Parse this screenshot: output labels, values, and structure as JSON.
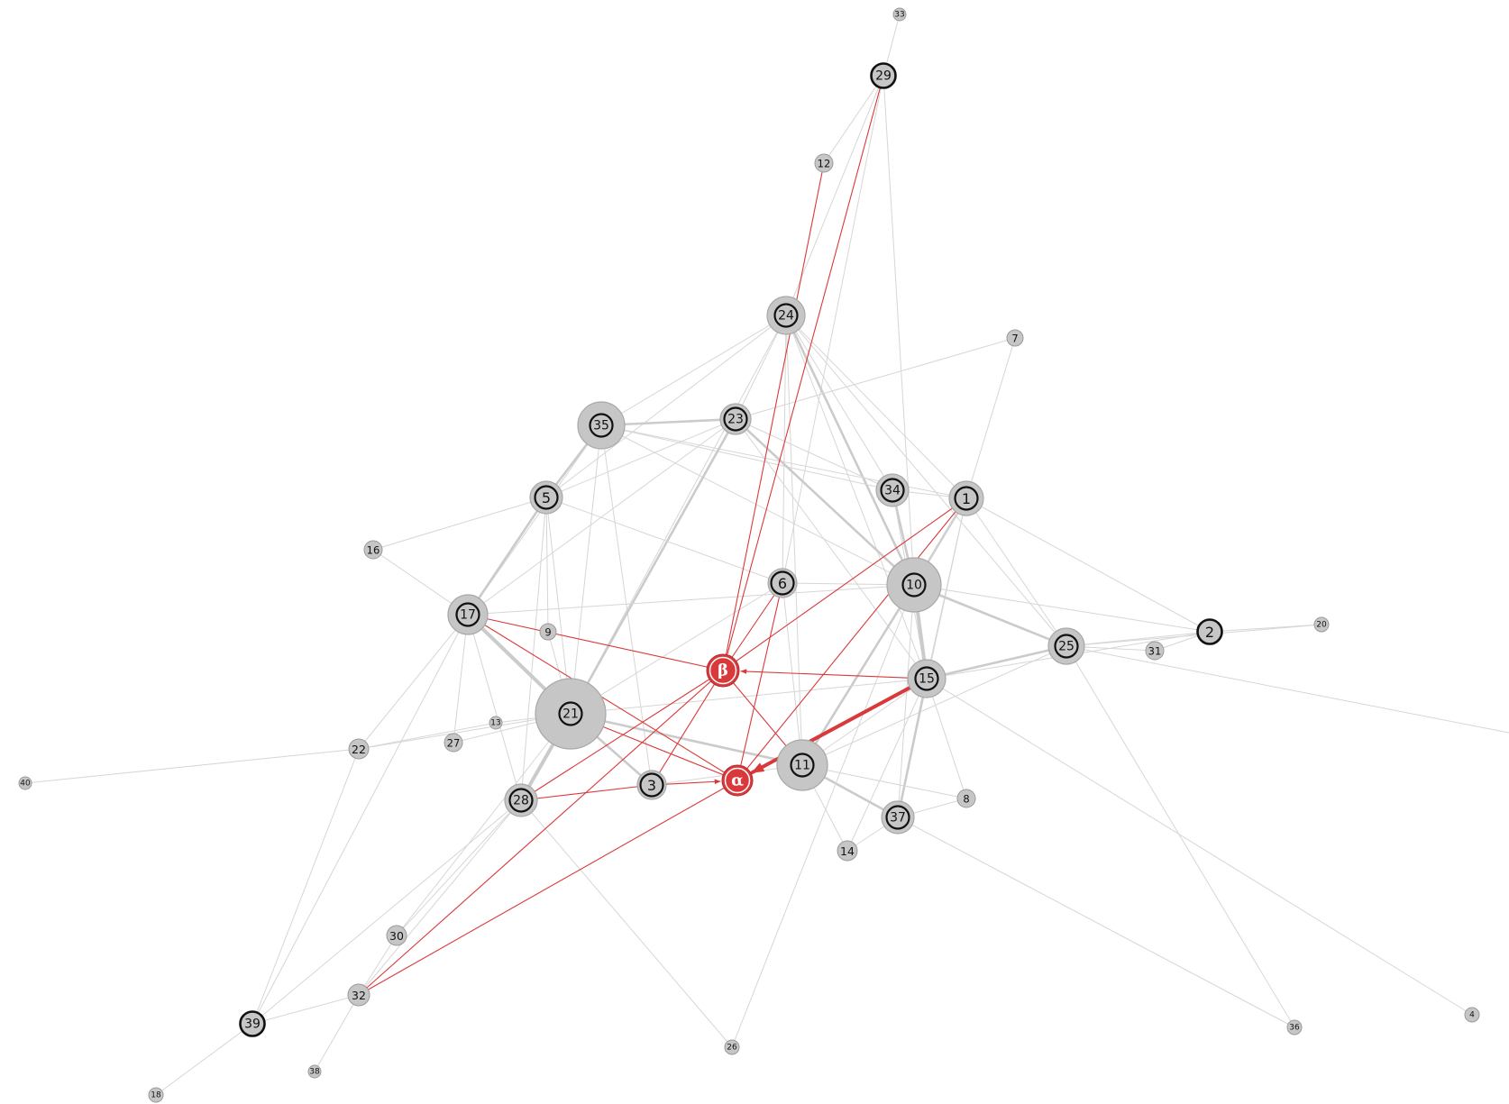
{
  "graph": {
    "colors": {
      "background": "#ffffff",
      "edge": "#d6d6d6",
      "edge_strong": "#cbcbcb",
      "highlight": "#d9393b",
      "highlight_text": "#ffffff",
      "node_fill": "#c6c6c6",
      "node_stroke": "#9a9a9a",
      "ring": "#111111"
    },
    "nodes": [
      {
        "label": "33"
      },
      {
        "label": "29",
        "outlined": true
      },
      {
        "label": "12"
      },
      {
        "label": "24",
        "outlined": true
      },
      {
        "label": "7"
      },
      {
        "label": "35",
        "outlined": true
      },
      {
        "label": "23",
        "outlined": true
      },
      {
        "label": "5",
        "outlined": true
      },
      {
        "label": "34",
        "outlined": true
      },
      {
        "label": "1",
        "outlined": true
      },
      {
        "label": "16"
      },
      {
        "label": "6",
        "outlined": true
      },
      {
        "label": "10",
        "outlined": true
      },
      {
        "label": "17",
        "outlined": true
      },
      {
        "label": "9"
      },
      {
        "label": "2",
        "outlined": true
      },
      {
        "label": "20"
      },
      {
        "label": "25",
        "outlined": true
      },
      {
        "label": "31"
      },
      {
        "label": "β",
        "highlight": true
      },
      {
        "label": "15",
        "outlined": true
      },
      {
        "label": "21",
        "outlined": true
      },
      {
        "label": "13"
      },
      {
        "label": "22"
      },
      {
        "label": "27"
      },
      {
        "label": "40"
      },
      {
        "label": "11",
        "outlined": true
      },
      {
        "label": "α",
        "highlight": true
      },
      {
        "label": "3",
        "outlined": true
      },
      {
        "label": "28",
        "outlined": true
      },
      {
        "label": "8"
      },
      {
        "label": "37",
        "outlined": true
      },
      {
        "label": "14"
      },
      {
        "label": "30"
      },
      {
        "label": "32"
      },
      {
        "label": "39",
        "outlined": true
      },
      {
        "label": "26"
      },
      {
        "label": "38"
      },
      {
        "label": "36"
      },
      {
        "label": "4"
      },
      {
        "label": "18"
      }
    ],
    "edges": [
      {
        "source": "33",
        "target": "29"
      },
      {
        "source": "29",
        "target": "12"
      },
      {
        "source": "29",
        "target": "24"
      },
      {
        "source": "29",
        "target": "10"
      },
      {
        "source": "29",
        "target": "6"
      },
      {
        "source": "24",
        "target": "35"
      },
      {
        "source": "24",
        "target": "23"
      },
      {
        "source": "24",
        "target": "5"
      },
      {
        "source": "24",
        "target": "21"
      },
      {
        "source": "24",
        "target": "34"
      },
      {
        "source": "24",
        "target": "1"
      },
      {
        "source": "24",
        "target": "10",
        "weight": 2
      },
      {
        "source": "24",
        "target": "15"
      },
      {
        "source": "24",
        "target": "6"
      },
      {
        "source": "24",
        "target": "11"
      },
      {
        "source": "24",
        "target": "25"
      },
      {
        "source": "35",
        "target": "23",
        "weight": 2
      },
      {
        "source": "35",
        "target": "5",
        "weight": 2
      },
      {
        "source": "35",
        "target": "17"
      },
      {
        "source": "35",
        "target": "21"
      },
      {
        "source": "35",
        "target": "3"
      },
      {
        "source": "35",
        "target": "34"
      },
      {
        "source": "35",
        "target": "10"
      },
      {
        "source": "35",
        "target": "1"
      },
      {
        "source": "23",
        "target": "5"
      },
      {
        "source": "23",
        "target": "7"
      },
      {
        "source": "23",
        "target": "21",
        "weight": 2
      },
      {
        "source": "23",
        "target": "17"
      },
      {
        "source": "23",
        "target": "34"
      },
      {
        "source": "23",
        "target": "10",
        "weight": 2
      },
      {
        "source": "23",
        "target": "15"
      },
      {
        "source": "5",
        "target": "17",
        "weight": 2
      },
      {
        "source": "5",
        "target": "16"
      },
      {
        "source": "5",
        "target": "21"
      },
      {
        "source": "5",
        "target": "28"
      },
      {
        "source": "5",
        "target": "9"
      },
      {
        "source": "5",
        "target": "6"
      },
      {
        "source": "34",
        "target": "1"
      },
      {
        "source": "34",
        "target": "10",
        "weight": 2
      },
      {
        "source": "34",
        "target": "15"
      },
      {
        "source": "1",
        "target": "10",
        "weight": 2
      },
      {
        "source": "1",
        "target": "25"
      },
      {
        "source": "1",
        "target": "2"
      },
      {
        "source": "1",
        "target": "7"
      },
      {
        "source": "1",
        "target": "15"
      },
      {
        "source": "1",
        "target": "11"
      },
      {
        "source": "1",
        "target": "37"
      },
      {
        "source": "16",
        "target": "17"
      },
      {
        "source": "17",
        "target": "21",
        "weight": 3
      },
      {
        "source": "17",
        "target": "22"
      },
      {
        "source": "17",
        "target": "27"
      },
      {
        "source": "17",
        "target": "39"
      },
      {
        "source": "17",
        "target": "10"
      },
      {
        "source": "17",
        "target": "28"
      },
      {
        "source": "6",
        "target": "10"
      },
      {
        "source": "6",
        "target": "21"
      },
      {
        "source": "6",
        "target": "11"
      },
      {
        "source": "10",
        "target": "25",
        "weight": 2
      },
      {
        "source": "10",
        "target": "2"
      },
      {
        "source": "10",
        "target": "15",
        "weight": 3
      },
      {
        "source": "10",
        "target": "11",
        "weight": 2
      },
      {
        "source": "10",
        "target": "37"
      },
      {
        "source": "2",
        "target": "25"
      },
      {
        "source": "2",
        "target": "31"
      },
      {
        "source": "2",
        "target": "20"
      },
      {
        "source": "2",
        "target": "15"
      },
      {
        "source": "25",
        "target": "31"
      },
      {
        "source": "25",
        "target": "15",
        "weight": 2
      },
      {
        "source": "25",
        "target": "36"
      },
      {
        "source": "25",
        "target": "11"
      },
      {
        "source": "25",
        "target": "20"
      },
      {
        "source": "15",
        "target": "8"
      },
      {
        "source": "15",
        "target": "37",
        "weight": 2
      },
      {
        "source": "15",
        "target": "14"
      },
      {
        "source": "15",
        "target": "4"
      },
      {
        "source": "15",
        "target": "11"
      },
      {
        "source": "15",
        "target": "21"
      },
      {
        "source": "21",
        "target": "13"
      },
      {
        "source": "21",
        "target": "22"
      },
      {
        "source": "21",
        "target": "27"
      },
      {
        "source": "21",
        "target": "28",
        "weight": 3
      },
      {
        "source": "21",
        "target": "11",
        "weight": 2
      },
      {
        "source": "21",
        "target": "3",
        "weight": 2
      },
      {
        "source": "21",
        "target": "30"
      },
      {
        "source": "11",
        "target": "37",
        "weight": 2
      },
      {
        "source": "11",
        "target": "14"
      },
      {
        "source": "11",
        "target": "8"
      },
      {
        "source": "11",
        "target": "3"
      },
      {
        "source": "37",
        "target": "8"
      },
      {
        "source": "37",
        "target": "14"
      },
      {
        "source": "37",
        "target": "36"
      },
      {
        "source": "22",
        "target": "40"
      },
      {
        "source": "22",
        "target": "13"
      },
      {
        "source": "22",
        "target": "39"
      },
      {
        "source": "28",
        "target": "26"
      },
      {
        "source": "28",
        "target": "30"
      },
      {
        "source": "28",
        "target": "39"
      },
      {
        "source": "28",
        "target": "32"
      },
      {
        "source": "30",
        "target": "32"
      },
      {
        "source": "32",
        "target": "39"
      },
      {
        "source": "32",
        "target": "38"
      },
      {
        "source": "39",
        "target": "18"
      },
      {
        "source": "26",
        "target": "10"
      },
      {
        "source": "9",
        "target": "21"
      },
      {
        "source": "12",
        "target": "β",
        "highlight": true
      },
      {
        "source": "29",
        "target": "β",
        "highlight": true
      },
      {
        "source": "1",
        "target": "β",
        "highlight": true
      },
      {
        "source": "1",
        "target": "α",
        "highlight": true
      },
      {
        "source": "6",
        "target": "α",
        "highlight": true
      },
      {
        "source": "6",
        "target": "β",
        "highlight": true
      },
      {
        "source": "15",
        "target": "β",
        "highlight": true,
        "directed": true
      },
      {
        "source": "15",
        "target": "α",
        "highlight": true,
        "directed": true,
        "weight": 3
      },
      {
        "source": "17",
        "target": "β",
        "highlight": true
      },
      {
        "source": "17",
        "target": "α",
        "highlight": true
      },
      {
        "source": "21",
        "target": "α",
        "highlight": true
      },
      {
        "source": "28",
        "target": "β",
        "highlight": true
      },
      {
        "source": "28",
        "target": "3",
        "highlight": true
      },
      {
        "source": "3",
        "target": "α",
        "highlight": true,
        "directed": true
      },
      {
        "source": "3",
        "target": "β",
        "highlight": true
      },
      {
        "source": "32",
        "target": "β",
        "highlight": true
      },
      {
        "source": "32",
        "target": "α",
        "highlight": true
      },
      {
        "source": "β",
        "target": "11",
        "highlight": true
      }
    ]
  }
}
